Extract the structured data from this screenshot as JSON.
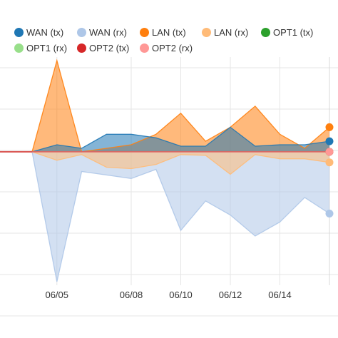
{
  "chart_data": {
    "type": "area",
    "x": [
      "06/04",
      "06/05",
      "06/06",
      "06/07",
      "06/08",
      "06/09",
      "06/10",
      "06/11",
      "06/12",
      "06/13",
      "06/14",
      "06/15",
      "06/16"
    ],
    "xticks": [
      "06/05",
      "06/08",
      "06/10",
      "06/12",
      "06/14"
    ],
    "ylim": [
      -185,
      135
    ],
    "grid": true,
    "legend": "top",
    "series": [
      {
        "name": "WAN (tx)",
        "color": "#1f77b4",
        "values": [
          0,
          10,
          5,
          25,
          25,
          20,
          8,
          8,
          35,
          8,
          10,
          10,
          15
        ]
      },
      {
        "name": "WAN (rx)",
        "color": "#aec7e8",
        "values": [
          0,
          -185,
          -28,
          -33,
          -38,
          -25,
          -112,
          -70,
          -90,
          -120,
          -100,
          -65,
          -88
        ]
      },
      {
        "name": "LAN (tx)",
        "color": "#ff7f0e",
        "values": [
          0,
          130,
          0,
          5,
          10,
          25,
          55,
          15,
          35,
          65,
          25,
          5,
          35
        ]
      },
      {
        "name": "LAN (rx)",
        "color": "#ffbb78",
        "values": [
          0,
          -12,
          -4,
          -22,
          -24,
          -18,
          -4,
          -5,
          -32,
          -4,
          -10,
          -10,
          -15
        ]
      },
      {
        "name": "OPT1 (tx)",
        "color": "#2ca02c",
        "values": [
          0,
          0,
          0,
          0,
          0,
          0,
          0,
          0,
          0,
          0,
          0,
          0,
          0
        ]
      },
      {
        "name": "OPT1 (rx)",
        "color": "#98df8a",
        "values": [
          0,
          0,
          0,
          0,
          0,
          0,
          0,
          0,
          0,
          0,
          0,
          0,
          0
        ]
      },
      {
        "name": "OPT2 (tx)",
        "color": "#d62728",
        "values": [
          0,
          0,
          0,
          0,
          0,
          0,
          0,
          0,
          0,
          0,
          0,
          0,
          0
        ]
      },
      {
        "name": "OPT2 (rx)",
        "color": "#ff9896",
        "values": [
          0,
          0,
          0,
          0,
          0,
          0,
          0,
          0,
          0,
          0,
          0,
          0,
          0
        ]
      }
    ]
  }
}
